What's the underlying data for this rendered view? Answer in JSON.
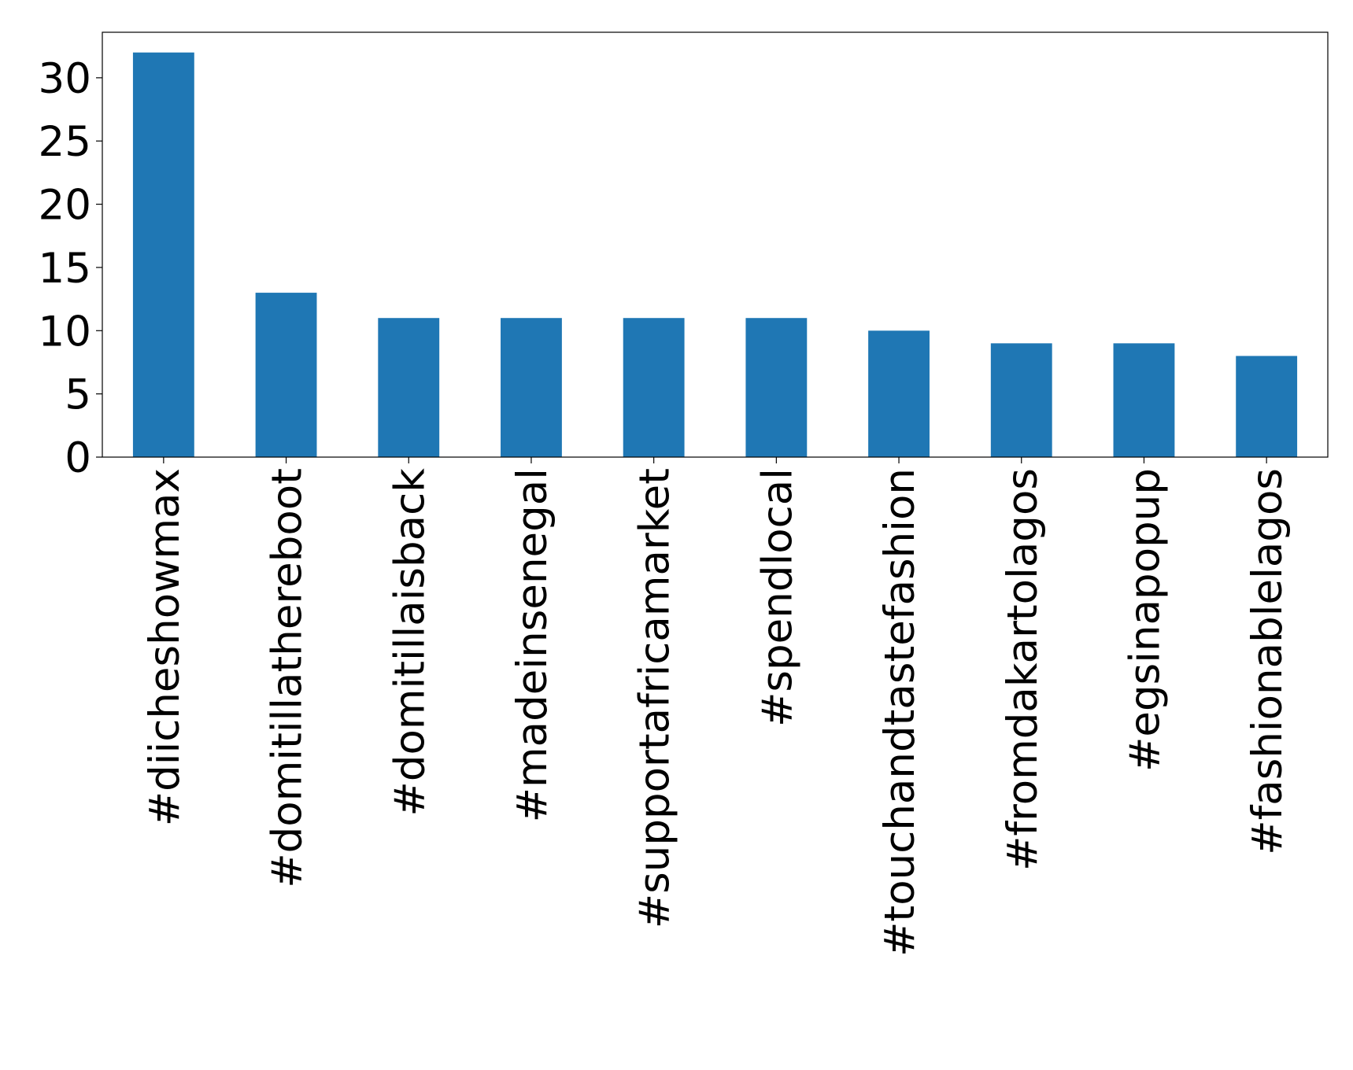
{
  "chart_data": {
    "type": "bar",
    "categories": [
      "#diicheshowmax",
      "#domitillathereboot",
      "#domitillaisback",
      "#madeinsenegal",
      "#supportafricamarket",
      "#spendlocal",
      "#touchandtastefashion",
      "#fromdakartolagos",
      "#egsinapopup",
      "#fashionablelagos"
    ],
    "values": [
      32,
      13,
      11,
      11,
      11,
      11,
      10,
      9,
      9,
      8
    ],
    "color": "#1f77b4",
    "ylim": [
      0,
      33.6
    ],
    "yticks": [
      0,
      5,
      10,
      15,
      20,
      25,
      30
    ],
    "grid": false
  }
}
